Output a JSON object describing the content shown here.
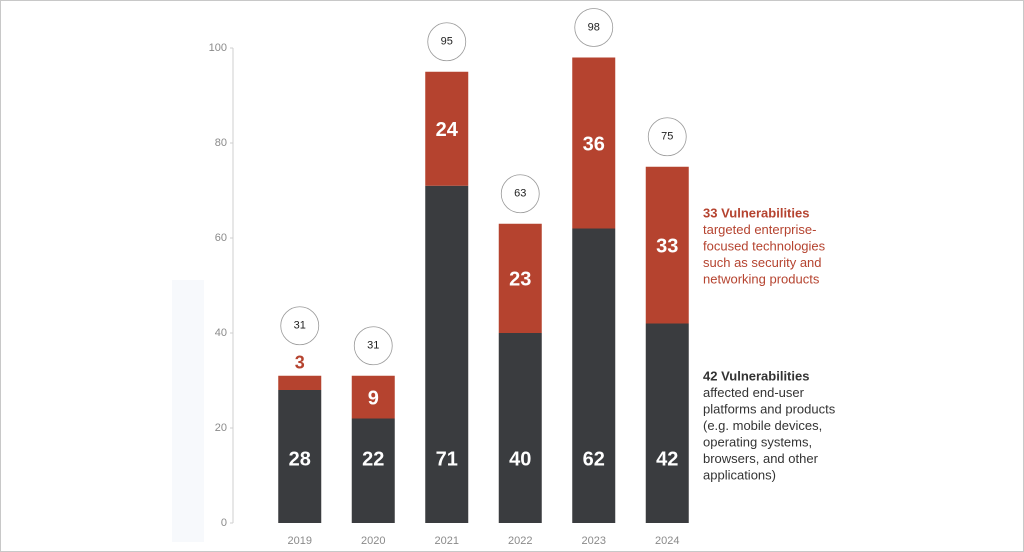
{
  "chart_data": {
    "type": "stacked_bar",
    "categories": [
      "2019",
      "2020",
      "2021",
      "2022",
      "2023",
      "2024"
    ],
    "series": [
      {
        "color": "#3a3c3f",
        "values": [
          28,
          22,
          71,
          40,
          62,
          42
        ]
      },
      {
        "color": "#b5432f",
        "values": [
          3,
          9,
          24,
          23,
          36,
          33
        ]
      }
    ],
    "totals": [
      31,
      31,
      95,
      63,
      98,
      75
    ],
    "ylim": [
      0,
      100
    ],
    "yticks": [
      0,
      20,
      40,
      60,
      80,
      100
    ],
    "grid": false,
    "annotations": [
      {
        "title": "33 Vulnerabilities",
        "lines": [
          "targeted enterprise-",
          "focused technologies",
          "such as security and",
          "networking products"
        ]
      },
      {
        "title": "42 Vulnerabilities",
        "lines": [
          "affected end-user",
          "platforms and products",
          "(e.g. mobile devices,",
          "operating systems,",
          "browsers, and other",
          "applications)"
        ]
      }
    ]
  }
}
